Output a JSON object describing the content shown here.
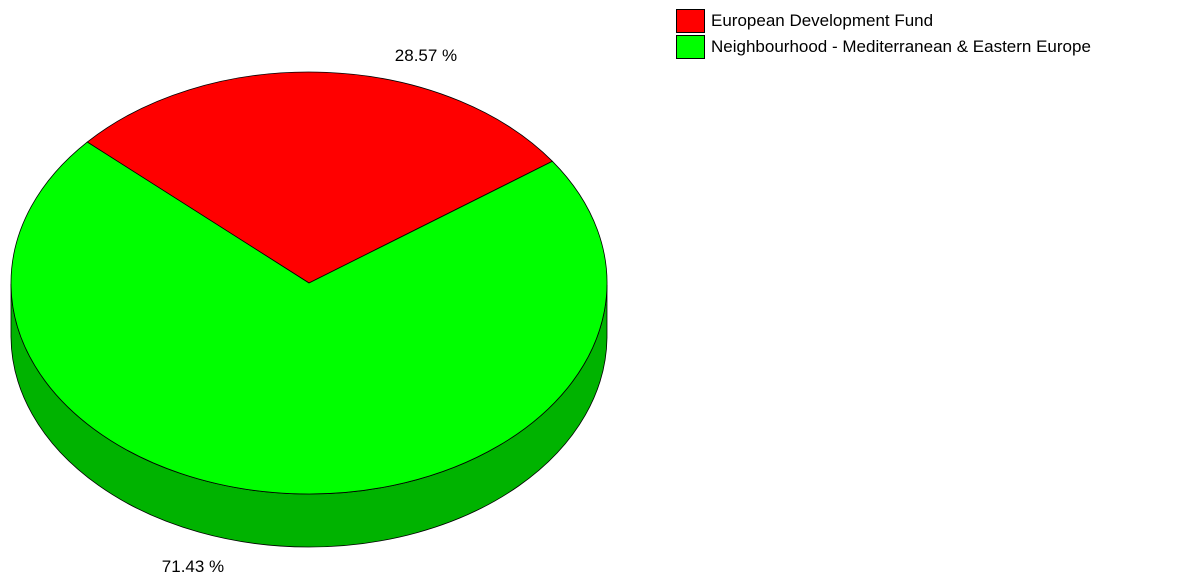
{
  "chart_data": {
    "type": "pie",
    "style": "3d",
    "slices": [
      {
        "label": "European Development Fund",
        "value": 28.57,
        "value_label": "28.57 %",
        "color": "#ff0000",
        "side_color": "#b30000"
      },
      {
        "label": "Neighbourhood - Mediterranean & Eastern Europe",
        "value": 71.43,
        "value_label": "71.43 %",
        "color": "#00ff00",
        "side_color": "#00b300"
      }
    ],
    "legend_position": "top-right"
  }
}
